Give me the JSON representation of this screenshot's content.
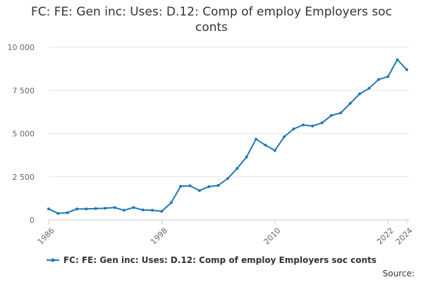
{
  "chart_data": {
    "type": "line",
    "title": "FC: FE: Gen inc: Uses: D.12: Comp of employ Employers soc conts",
    "xlabel": "",
    "ylabel": "",
    "xlim": [
      1986,
      2024
    ],
    "ylim": [
      0,
      10000
    ],
    "y_ticks": [
      0,
      2500,
      5000,
      7500,
      10000
    ],
    "y_tick_labels": [
      "0",
      "2 500",
      "5 000",
      "7 500",
      "10 000"
    ],
    "x_ticks": [
      1986,
      1998,
      2010,
      2022,
      2024
    ],
    "x_tick_labels": [
      "1986",
      "1998",
      "2010",
      "2022",
      "2024"
    ],
    "grid": true,
    "legend_position": "bottom",
    "series": [
      {
        "name": "FC: FE: Gen inc: Uses: D.12: Comp of employ Employers soc conts",
        "color": "#1f78b4",
        "x": [
          1986,
          1987,
          1988,
          1989,
          1990,
          1991,
          1992,
          1993,
          1994,
          1995,
          1996,
          1997,
          1998,
          1999,
          2000,
          2001,
          2002,
          2003,
          2004,
          2005,
          2006,
          2007,
          2008,
          2009,
          2010,
          2011,
          2012,
          2013,
          2014,
          2015,
          2016,
          2017,
          2018,
          2019,
          2020,
          2021,
          2022,
          2023,
          2024
        ],
        "values": [
          640,
          380,
          420,
          640,
          640,
          660,
          680,
          720,
          560,
          720,
          580,
          560,
          500,
          1000,
          1950,
          1980,
          1700,
          1930,
          2000,
          2400,
          2980,
          3650,
          4680,
          4330,
          4020,
          4820,
          5270,
          5500,
          5440,
          5620,
          6050,
          6200,
          6750,
          7300,
          7620,
          8130,
          8300,
          9280,
          8700
        ]
      }
    ]
  },
  "legend": {
    "label": "FC: FE: Gen inc: Uses: D.12: Comp of employ Employers soc conts"
  },
  "footer": {
    "source_label": "Source:"
  }
}
